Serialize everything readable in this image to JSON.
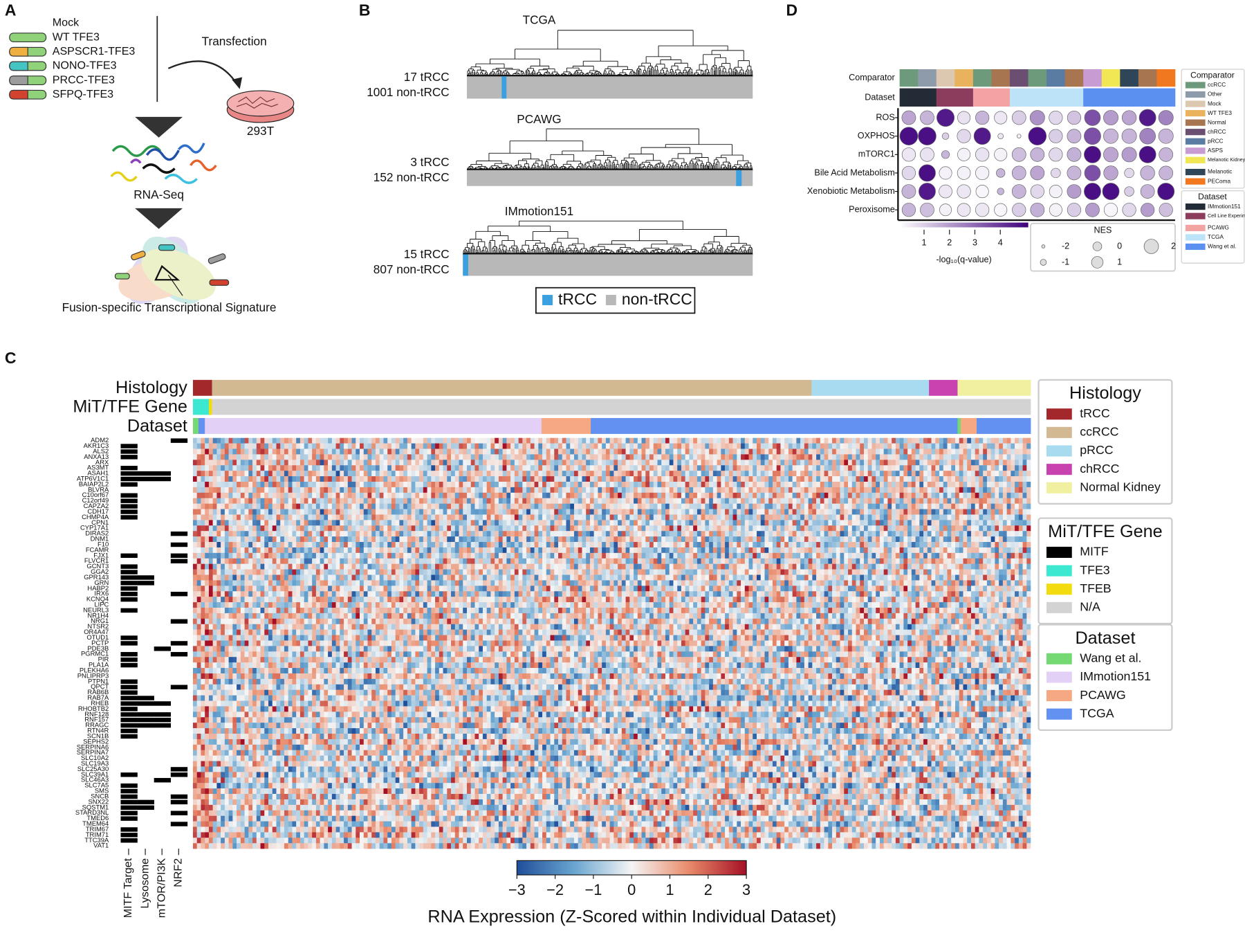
{
  "panels": {
    "A": {
      "label": "A",
      "constructs": [
        {
          "name": "Mock",
          "colors": []
        },
        {
          "name": "WT TFE3",
          "colors": [
            "#8fd27a"
          ]
        },
        {
          "name": "ASPSCR1-TFE3",
          "colors": [
            "#f0b040",
            "#8fd27a"
          ]
        },
        {
          "name": "NONO-TFE3",
          "colors": [
            "#45c4c4",
            "#8fd27a"
          ]
        },
        {
          "name": "PRCC-TFE3",
          "colors": [
            "#9c9c9c",
            "#8fd27a"
          ]
        },
        {
          "name": "SFPQ-TFE3",
          "colors": [
            "#d2432f",
            "#8fd27a"
          ]
        }
      ],
      "transfection": "Transfection",
      "cell_line": "293T",
      "rnaseq": "RNA-Seq",
      "signature": "Fusion-specific Transcriptional Signature"
    },
    "B": {
      "label": "B",
      "cohorts": [
        {
          "name": "TCGA",
          "trcc_text": "17 tRCC",
          "non_text": "1001 non-tRCC",
          "n_trcc": 17,
          "n_non": 1001,
          "trcc_leaf_start": 124
        },
        {
          "name": "PCAWG",
          "trcc_text": "3 tRCC",
          "non_text": "152 non-tRCC",
          "n_trcc": 3,
          "n_non": 152,
          "trcc_leaf_start": 146
        },
        {
          "name": "IMmotion151",
          "trcc_text": "15 tRCC",
          "non_text": "807 non-tRCC",
          "n_trcc": 15,
          "n_non": 807,
          "trcc_leaf_start": 0
        }
      ],
      "legend": [
        {
          "name": "tRCC",
          "color": "#3aa0e0"
        },
        {
          "name": "non-tRCC",
          "color": "#b8b8b8"
        }
      ]
    },
    "C": {
      "label": "C",
      "legends": [
        {
          "title": "Histology",
          "items": [
            {
              "name": "tRCC",
              "color": "#a3282b"
            },
            {
              "name": "ccRCC",
              "color": "#d2b991"
            },
            {
              "name": "pRCC",
              "color": "#a8daf0"
            },
            {
              "name": "chRCC",
              "color": "#c843b0"
            },
            {
              "name": "Normal Kidney",
              "color": "#f0f0a0"
            }
          ]
        },
        {
          "title": "MiT/TFE Gene",
          "items": [
            {
              "name": "MITF",
              "color": "#000000"
            },
            {
              "name": "TFE3",
              "color": "#3de8d0"
            },
            {
              "name": "TFEB",
              "color": "#f2dc10"
            },
            {
              "name": "N/A",
              "color": "#d3d3d3"
            }
          ]
        },
        {
          "title": "Dataset",
          "items": [
            {
              "name": "Wang et al.",
              "color": "#74d873"
            },
            {
              "name": "IMmotion151",
              "color": "#e2d0f6"
            },
            {
              "name": "PCAWG",
              "color": "#f6a882"
            },
            {
              "name": "TCGA",
              "color": "#6391f2"
            }
          ]
        }
      ],
      "tracks": [
        {
          "name": "Histology",
          "segments": [
            [
              0,
              24
            ],
            [
              1,
              755
            ],
            [
              2,
              148
            ],
            [
              3,
              36
            ],
            [
              4,
              92
            ]
          ]
        },
        {
          "name": "MiT/TFE Gene",
          "segments": [
            [
              1,
              20
            ],
            [
              2,
              4
            ],
            [
              3,
              1031
            ]
          ]
        },
        {
          "name": "Dataset",
          "segments": [
            [
              0,
              7
            ],
            [
              3,
              8
            ],
            [
              1,
              424
            ],
            [
              2,
              62
            ],
            [
              3,
              462
            ],
            [
              0,
              4
            ],
            [
              2,
              20
            ],
            [
              3,
              68
            ]
          ]
        }
      ],
      "genes": [
        "ADM2",
        "AKR1C3",
        "ALS2",
        "ANXA13",
        "ARX",
        "AS3MT",
        "ASAH1",
        "ATP6V1C1",
        "BAIAP2L2",
        "BLVRA",
        "C10orf67",
        "C12orf49",
        "CAPZA2",
        "CDH17",
        "CHMP4A",
        "CPN1",
        "CYP17A1",
        "DIRAS2",
        "DNM1",
        "F10",
        "FCAMR",
        "FJX1",
        "FLVCR1",
        "GCNT3",
        "GGA2",
        "GPR143",
        "GRN",
        "HABP2",
        "IRX6",
        "KCNQ4",
        "LIPC",
        "NEURL3",
        "NR1H4",
        "NRG1",
        "NTSR2",
        "OR4A47",
        "OTUD1",
        "PCTP",
        "PDE3B",
        "PGRMC1",
        "PIR",
        "PLA1A",
        "PLEKHA6",
        "PNLIPRP3",
        "PTPN1",
        "QPCT",
        "RAB6B",
        "RAB7A",
        "RHEB",
        "RHOBTB2",
        "RNF128",
        "RNF157",
        "RRAGC",
        "RTN4R",
        "SCN1B",
        "SEPHS2",
        "SERPINA6",
        "SERPINA7",
        "SLC10A2",
        "SLC19A3",
        "SLC25A30",
        "SLC39A1",
        "SLC46A3",
        "SLC7A5",
        "SMS",
        "SNCB",
        "SNX22",
        "SQSTM1",
        "STARD3NL",
        "TMED6",
        "TMEM64",
        "TRIM67",
        "TRIM71",
        "TTC39A",
        "VAT1"
      ],
      "membership": [
        [
          3
        ],
        [
          0
        ],
        [
          0
        ],
        [
          0
        ],
        [],
        [
          0
        ],
        [
          0,
          1,
          2
        ],
        [
          0,
          1,
          2
        ],
        [
          0
        ],
        [],
        [
          0
        ],
        [
          0
        ],
        [
          0
        ],
        [
          0
        ],
        [
          0
        ],
        [],
        [],
        [
          3
        ],
        [],
        [
          3
        ],
        [],
        [
          0,
          3
        ],
        [
          3
        ],
        [
          0
        ],
        [
          0
        ],
        [
          0,
          1
        ],
        [
          0,
          1
        ],
        [
          0
        ],
        [
          0,
          3
        ],
        [
          0
        ],
        [],
        [
          0
        ],
        [],
        [
          3
        ],
        [],
        [],
        [
          0
        ],
        [
          0,
          3
        ],
        [
          2
        ],
        [
          0,
          3
        ],
        [
          0
        ],
        [
          0
        ],
        [],
        [],
        [
          0
        ],
        [
          0,
          3
        ],
        [
          0
        ],
        [
          0,
          1
        ],
        [
          0,
          1,
          2
        ],
        [
          0
        ],
        [
          0,
          1,
          2
        ],
        [
          0,
          1,
          2
        ],
        [
          0,
          1,
          2
        ],
        [
          0
        ],
        [
          0
        ],
        [],
        [],
        [],
        [],
        [],
        [
          3
        ],
        [
          0,
          3
        ],
        [
          2
        ],
        [
          0
        ],
        [
          0
        ],
        [
          0,
          3
        ],
        [
          0,
          1,
          3
        ],
        [
          0,
          1
        ],
        [
          0,
          3
        ],
        [
          0
        ],
        [
          3
        ],
        [
          0
        ],
        [
          0
        ],
        [
          0
        ],
        []
      ],
      "gene_sets": [
        "MITF Target",
        "Lysosome",
        "mTOR/PI3K",
        "NRF2"
      ],
      "colorbar": {
        "lim": [
          -3,
          3
        ],
        "ticks": [
          {
            "value": -3,
            "label": "−3"
          },
          {
            "value": -2,
            "label": "−2"
          },
          {
            "value": -1,
            "label": "−1"
          },
          0,
          1,
          2,
          3
        ],
        "label": "RNA Expression (Z-Scored within Individual Dataset)"
      }
    },
    "D": {
      "label": "D",
      "row_labels": [
        "Comparator",
        "Dataset"
      ],
      "pathways": [
        "ROS",
        "OXPHOS",
        "mTORC1",
        "Bile Acid Metabolism",
        "Xenobiotic Metabolism",
        "Peroxisome"
      ],
      "comparator_legend": {
        "title": "Comparator",
        "items": [
          {
            "name": "ccRCC",
            "color": "#6c9a7a"
          },
          {
            "name": "Other",
            "color": "#8e9bab"
          },
          {
            "name": "Mock",
            "color": "#dcc8b0"
          },
          {
            "name": "WT TFE3",
            "color": "#e9b25c"
          },
          {
            "name": "Normal",
            "color": "#a77550"
          },
          {
            "name": "chRCC",
            "color": "#6b4f72"
          },
          {
            "name": "pRCC",
            "color": "#5a7ca3"
          },
          {
            "name": "ASPS",
            "color": "#c99bd3"
          },
          {
            "name": "Melanotic Kidney",
            "color": "#f1e654"
          },
          {
            "name": "Melanotic",
            "color": "#2f4558"
          },
          {
            "name": "PEComa",
            "color": "#f2781f"
          }
        ]
      },
      "dataset_legend": {
        "title": "Dataset",
        "items": [
          {
            "name": "IMmotion151",
            "color": "#232c36"
          },
          {
            "name": "Cell Line Experiment",
            "color": "#8c3c5c"
          },
          {
            "name": "PCAWG",
            "color": "#f4a3a3"
          },
          {
            "name": "TCGA",
            "color": "#bde3f8"
          },
          {
            "name": "Wang et al.",
            "color": "#5b8ff0"
          }
        ]
      },
      "comparator": [
        0,
        1,
        2,
        3,
        0,
        4,
        5,
        0,
        6,
        4,
        7,
        8,
        9,
        4,
        10
      ],
      "dataset": [
        0,
        0,
        1,
        1,
        2,
        2,
        3,
        3,
        3,
        3,
        4,
        4,
        4,
        4,
        4
      ],
      "nes": [
        [
          0.3,
          0.3,
          1.2,
          0,
          0.2,
          0,
          0.3,
          0.5,
          0.2,
          0.2,
          0.8,
          0.5,
          0.4,
          1.0,
          0.5
        ],
        [
          1.3,
          1.3,
          -1.5,
          0.2,
          1.0,
          -1.8,
          -2.2,
          1.3,
          0.2,
          0.3,
          1.0,
          0.5,
          0.5,
          0.8,
          0.5
        ],
        [
          0.2,
          0.3,
          -1.2,
          0,
          0.2,
          0,
          0.3,
          0.3,
          0.2,
          0.3,
          1.0,
          0.5,
          0.5,
          1.0,
          0.3
        ],
        [
          0.2,
          1.0,
          0,
          0.1,
          0.2,
          -1.0,
          0.3,
          0.3,
          -0.8,
          0.3,
          0.8,
          0.4,
          -0.8,
          0.4,
          0.3
        ],
        [
          0.3,
          1.0,
          0.1,
          0.2,
          0,
          -1.5,
          0.3,
          0.2,
          0,
          0.3,
          1.0,
          1.0,
          -0.8,
          0.3,
          1.0
        ],
        [
          0.2,
          0.3,
          -0.2,
          0.1,
          0.2,
          0,
          0.2,
          0.3,
          0,
          0.2,
          0.3,
          0.2,
          0.2,
          0.2,
          0.2
        ]
      ],
      "q": [
        [
          1.8,
          1.5,
          4.6,
          0.6,
          1.5,
          0.5,
          1.0,
          2.2,
          0.8,
          1.2,
          3.5,
          2.0,
          1.8,
          4.6,
          2.5
        ],
        [
          4.8,
          4.8,
          1.0,
          0.8,
          4.6,
          0.5,
          0.3,
          4.8,
          1.0,
          1.5,
          3.5,
          1.5,
          1.5,
          2.5,
          1.5
        ],
        [
          0.5,
          0.6,
          1.5,
          0.3,
          0.6,
          0.3,
          1.3,
          1.5,
          0.8,
          1.6,
          4.8,
          1.8,
          2.0,
          4.8,
          1.5
        ],
        [
          0.8,
          4.8,
          0.3,
          0.3,
          0.3,
          1.5,
          1.5,
          1.8,
          0.8,
          1.5,
          3.5,
          1.8,
          0.8,
          1.5,
          1.5
        ],
        [
          1.5,
          4.6,
          0.5,
          0.5,
          0.2,
          1.5,
          1.5,
          0.8,
          0.3,
          2.0,
          4.8,
          4.8,
          1.0,
          1.5,
          4.8
        ],
        [
          1.5,
          1.3,
          0.3,
          0.5,
          0.5,
          0.2,
          1.0,
          1.6,
          0.3,
          1.0,
          2.0,
          0.2,
          0.8,
          2.0,
          1.3
        ]
      ],
      "qlim": [
        0.1,
        5.1
      ],
      "qticks": [
        1,
        2,
        3,
        4
      ],
      "q_label": "-log₁₀(q-value)",
      "nes_title": "NES",
      "nes_ticks": [
        -2,
        -1,
        0,
        1,
        2
      ]
    }
  }
}
